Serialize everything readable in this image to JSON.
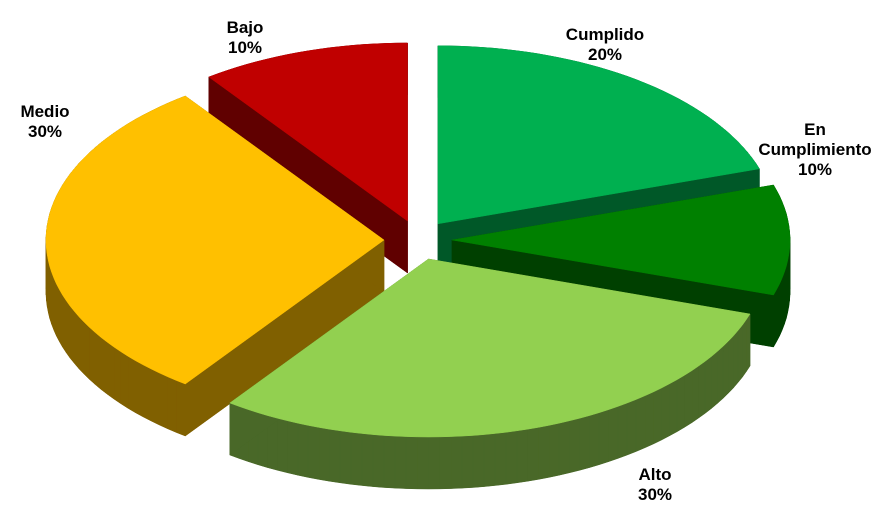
{
  "chart_data": {
    "type": "pie",
    "categories": [
      "Cumplido",
      "En Cumplimiento",
      "Alto",
      "Medio",
      "Bajo"
    ],
    "values": [
      20,
      10,
      30,
      30,
      10
    ],
    "value_labels": [
      "20%",
      "10%",
      "30%",
      "30%",
      "10%"
    ],
    "colors": [
      "#00b050",
      "#008000",
      "#92d050",
      "#ffc000",
      "#c00000"
    ]
  }
}
